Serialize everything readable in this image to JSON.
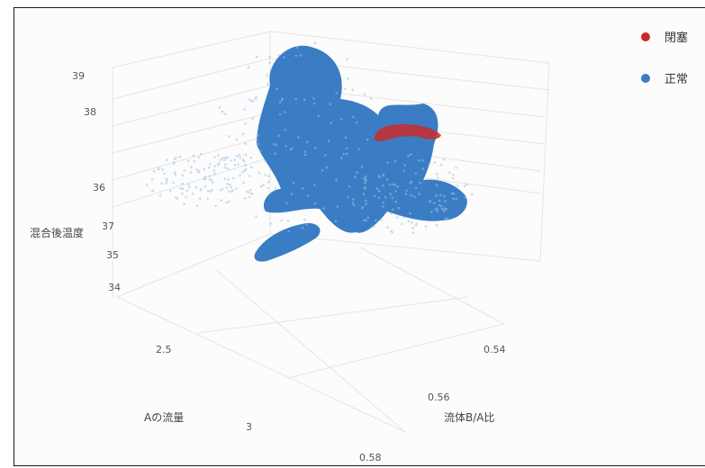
{
  "chart_data": {
    "type": "scatter",
    "title": "",
    "axes": {
      "x": {
        "label": "流体B/A比",
        "ticks": [
          "0.54",
          "0.56",
          "0.58"
        ]
      },
      "y": {
        "label": "Aの流量",
        "ticks": [
          "2.5",
          "3"
        ]
      },
      "z": {
        "label": "混合後温度",
        "ticks": [
          "34",
          "35",
          "36",
          "37",
          "38",
          "39"
        ]
      }
    },
    "legend_position": "top-right",
    "series": [
      {
        "name": "閉塞",
        "color": "#cc2a2a",
        "points": [
          [
            0.552,
            2.55,
            38.3
          ],
          [
            0.553,
            2.57,
            38.4
          ],
          [
            0.554,
            2.6,
            38.4
          ],
          [
            0.555,
            2.63,
            38.4
          ],
          [
            0.556,
            2.66,
            38.3
          ],
          [
            0.557,
            2.7,
            38.2
          ]
        ]
      },
      {
        "name": "正常",
        "color": "#3a7dc4",
        "points": [
          [
            0.548,
            2.45,
            39.0
          ],
          [
            0.55,
            2.5,
            38.0
          ],
          [
            0.553,
            2.62,
            37.6
          ],
          [
            0.556,
            2.7,
            37.0
          ],
          [
            0.562,
            2.78,
            36.3
          ],
          [
            0.57,
            2.95,
            35.0
          ]
        ]
      }
    ]
  }
}
